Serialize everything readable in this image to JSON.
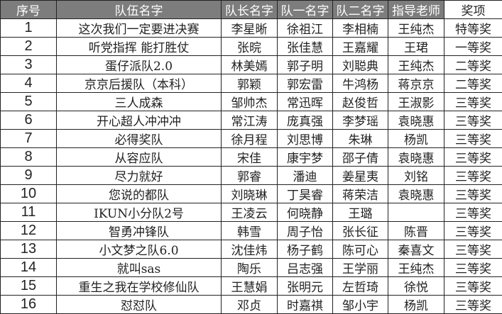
{
  "headers": [
    "序号",
    "队伍名字",
    "队长名字",
    "队一名字",
    "队二名字",
    "指导老师",
    "奖项"
  ],
  "rows": [
    [
      "1",
      "这次我们一定要进决赛",
      "李星晰",
      "徐祖江",
      "李相楠",
      "王纯杰",
      "特等奖"
    ],
    [
      "2",
      "听党指挥  能打胜仗",
      "张晥",
      "张佳慧",
      "王嘉耀",
      "王珺",
      "一等奖"
    ],
    [
      "3",
      "蛋仔派队2.0",
      "林美嫣",
      "郭子明",
      "刘聪典",
      "王纯杰",
      "二等奖"
    ],
    [
      "4",
      "京京后援队（本科）",
      "郭颖",
      "郭宏雷",
      "牛鸿杨",
      "蒋京京",
      "二等奖"
    ],
    [
      "5",
      "三人成森",
      "邹帅杰",
      "常迅晖",
      "赵俊哲",
      "王淑影",
      "三等奖"
    ],
    [
      "6",
      "开心超人冲冲冲",
      "常江涛",
      "庞真强",
      "李梦瑶",
      "袁晓惠",
      "三等奖"
    ],
    [
      "7",
      "必得奖队",
      "徐月程",
      "刘思博",
      "朱琳",
      "杨凯",
      "三等奖"
    ],
    [
      "8",
      "从容应队",
      "宋佳",
      "康宇梦",
      "邵子倩",
      "袁晓惠",
      "三等奖"
    ],
    [
      "9",
      "尽力就好",
      "郭睿",
      "潘迪",
      "姜星夷",
      "刘铭",
      "三等奖"
    ],
    [
      "10",
      "您说的都队",
      "刘晓琳",
      "丁昊睿",
      "蒋荣洁",
      "袁晓惠",
      "三等奖"
    ],
    [
      "11",
      "IKUN小分队2号",
      "王凌云",
      "何晓静",
      "王璐",
      "",
      "三等奖"
    ],
    [
      "12",
      "智勇冲锋队",
      "韩雪",
      "周子怡",
      "张长征",
      "陈晋",
      "三等奖"
    ],
    [
      "13",
      "小文梦之队6.0",
      "沈佳炜",
      "杨子鹤",
      "陈可心",
      "秦喜文",
      "三等奖"
    ],
    [
      "14",
      "就叫sas",
      "陶乐",
      "吕志强",
      "王学丽",
      "王纯杰",
      "三等奖"
    ],
    [
      "15",
      "重生之我在学校修仙队",
      "王慧娟",
      "张明元",
      "左哲琦",
      "徐悦",
      "三等奖"
    ],
    [
      "16",
      "怼怼队",
      "邓贞",
      "时嘉祺",
      "邹小宇",
      "杨凯",
      "三等奖"
    ]
  ]
}
